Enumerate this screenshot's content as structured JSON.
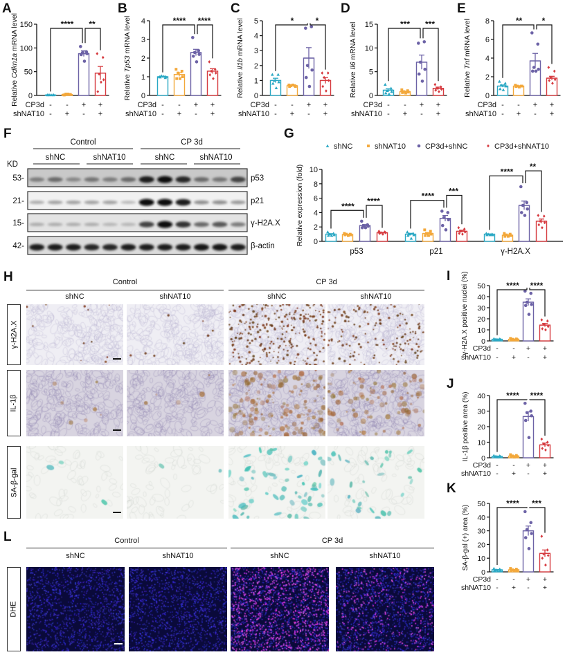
{
  "panels": {
    "A": "A",
    "B": "B",
    "C": "C",
    "D": "D",
    "E": "E",
    "F": "F",
    "G": "G",
    "H": "H",
    "I": "I",
    "J": "J",
    "K": "K",
    "L": "L"
  },
  "colors": {
    "shNC": "#2aa8c4",
    "shNAT10": "#f3a83b",
    "CP3d+shNC": "#6c62a6",
    "CP3d+shNAT10": "#d63a3f"
  },
  "markers": {
    "shNC": "triangle",
    "shNAT10": "square",
    "CP3d+shNC": "circle",
    "CP3d+shNAT10": "diamond"
  },
  "chart_data": [
    {
      "id": "A",
      "type": "bar",
      "ylabel": [
        {
          "t": "Relative "
        },
        {
          "t": "Cdkn1a",
          "i": true
        },
        {
          "t": " mRNA level"
        }
      ],
      "ylim": [
        0,
        150
      ],
      "yticks": [
        0,
        50,
        100,
        150
      ],
      "groups": [
        "shNC",
        "shNAT10",
        "CP3d+shNC",
        "CP3d+shNAT10"
      ],
      "means": [
        1,
        2,
        88,
        47
      ],
      "sem": [
        0.2,
        0.4,
        6,
        14
      ],
      "points": [
        [
          1,
          1,
          1,
          1,
          1,
          1
        ],
        [
          1,
          2,
          3,
          2,
          1,
          3
        ],
        [
          103,
          92,
          90,
          88,
          86,
          72
        ],
        [
          88,
          80,
          45,
          33,
          8,
          28
        ]
      ],
      "sig": [
        {
          "from": 0,
          "to": 2,
          "label": "****"
        },
        {
          "from": 2,
          "to": 3,
          "label": "**"
        }
      ],
      "conditions": [
        {
          "label": "CP3d",
          "values": [
            "-",
            "-",
            "+",
            "+"
          ]
        },
        {
          "label": "shNAT10",
          "values": [
            "-",
            "+",
            "-",
            "+"
          ]
        }
      ]
    },
    {
      "id": "B",
      "type": "bar",
      "ylabel": [
        {
          "t": "Relative "
        },
        {
          "t": "Tp53",
          "i": true
        },
        {
          "t": " mRNA level"
        }
      ],
      "ylim": [
        0,
        4
      ],
      "yticks": [
        0,
        1,
        2,
        3,
        4
      ],
      "groups": [
        "shNC",
        "shNAT10",
        "CP3d+shNC",
        "CP3d+shNAT10"
      ],
      "means": [
        1.0,
        1.12,
        2.3,
        1.3
      ],
      "sem": [
        0.03,
        0.1,
        0.17,
        0.13
      ],
      "points": [
        [
          1.0,
          0.95,
          1.05,
          1.0,
          0.98,
          1.02
        ],
        [
          1.4,
          1.3,
          1.2,
          1.0,
          0.9,
          0.9
        ],
        [
          3.1,
          2.4,
          2.3,
          2.2,
          2.1,
          1.8
        ],
        [
          1.8,
          1.4,
          1.3,
          1.2,
          1.1,
          0.9
        ]
      ],
      "sig": [
        {
          "from": 0,
          "to": 2,
          "label": "****"
        },
        {
          "from": 2,
          "to": 3,
          "label": "****"
        }
      ],
      "conditions": [
        {
          "label": "CP3d",
          "values": [
            "-",
            "-",
            "+",
            "+"
          ]
        },
        {
          "label": "shNAT10",
          "values": [
            "-",
            "+",
            "-",
            "+"
          ]
        }
      ]
    },
    {
      "id": "C",
      "type": "bar",
      "ylabel": [
        {
          "t": "Relative "
        },
        {
          "t": "Il1b",
          "i": true
        },
        {
          "t": " mRNA level"
        }
      ],
      "ylim": [
        0,
        5
      ],
      "yticks": [
        0,
        1,
        2,
        3,
        4,
        5
      ],
      "groups": [
        "shNC",
        "shNAT10",
        "CP3d+shNC",
        "CP3d+shNAT10"
      ],
      "means": [
        1.0,
        0.65,
        2.5,
        1.0
      ],
      "sem": [
        0.15,
        0.03,
        0.7,
        0.2
      ],
      "points": [
        [
          1.4,
          1.4,
          1.0,
          0.9,
          0.8,
          0.5
        ],
        [
          0.7,
          0.65,
          0.65,
          0.6,
          0.6,
          0.7
        ],
        [
          4.5,
          4.6,
          2.0,
          1.7,
          1.2,
          0.6
        ],
        [
          1.5,
          1.5,
          1.2,
          1.0,
          0.6,
          0.3
        ]
      ],
      "sig": [
        {
          "from": 0,
          "to": 2,
          "label": "*"
        },
        {
          "from": 2,
          "to": 3,
          "label": "*"
        }
      ],
      "conditions": [
        {
          "label": "CP3d",
          "values": [
            "-",
            "-",
            "+",
            "+"
          ]
        },
        {
          "label": "shNAT10",
          "values": [
            "-",
            "+",
            "-",
            "+"
          ]
        }
      ]
    },
    {
      "id": "D",
      "type": "bar",
      "ylabel": [
        {
          "t": "Relative "
        },
        {
          "t": "Il6",
          "i": true
        },
        {
          "t": " mRNA level"
        }
      ],
      "ylim": [
        0,
        15
      ],
      "yticks": [
        0,
        5,
        10,
        15
      ],
      "groups": [
        "shNC",
        "shNAT10",
        "CP3d+shNC",
        "CP3d+shNAT10"
      ],
      "means": [
        1.1,
        0.8,
        7.0,
        1.5
      ],
      "sem": [
        0.3,
        0.12,
        1.5,
        0.25
      ],
      "points": [
        [
          2.3,
          1.5,
          1.0,
          0.8,
          0.5,
          0.3
        ],
        [
          1.2,
          1.0,
          0.8,
          0.7,
          0.6,
          0.5
        ],
        [
          11,
          11.3,
          7,
          5.5,
          4.5,
          3
        ],
        [
          2.3,
          1.8,
          1.5,
          1.3,
          1.1,
          0.8
        ]
      ],
      "sig": [
        {
          "from": 0,
          "to": 2,
          "label": "***"
        },
        {
          "from": 2,
          "to": 3,
          "label": "***"
        }
      ],
      "conditions": [
        {
          "label": "CP3d",
          "values": [
            "-",
            "-",
            "+",
            "+"
          ]
        },
        {
          "label": "shNAT10",
          "values": [
            "-",
            "+",
            "-",
            "+"
          ]
        }
      ]
    },
    {
      "id": "E",
      "type": "bar",
      "ylabel": [
        {
          "t": "Relative "
        },
        {
          "t": "Tnf",
          "i": true
        },
        {
          "t": " mRNA level"
        }
      ],
      "ylim": [
        0,
        8
      ],
      "yticks": [
        0,
        2,
        4,
        6,
        8
      ],
      "groups": [
        "shNC",
        "shNAT10",
        "CP3d+shNC",
        "CP3d+shNAT10"
      ],
      "means": [
        1.0,
        1.0,
        3.7,
        1.85
      ],
      "sem": [
        0.12,
        0.04,
        0.8,
        0.2
      ],
      "points": [
        [
          1.5,
          1.3,
          1.1,
          1.0,
          0.7,
          0.6
        ],
        [
          1.1,
          1.0,
          1.0,
          1.0,
          0.95,
          0.9
        ],
        [
          6.7,
          5.5,
          3,
          2.8,
          2.6,
          2.6
        ],
        [
          3.0,
          2.6,
          1.9,
          1.7,
          1.6,
          1.3
        ]
      ],
      "sig": [
        {
          "from": 0,
          "to": 2,
          "label": "**"
        },
        {
          "from": 2,
          "to": 3,
          "label": "*"
        }
      ],
      "conditions": [
        {
          "label": "CP3d",
          "values": [
            "-",
            "-",
            "+",
            "+"
          ]
        },
        {
          "label": "shNAT10",
          "values": [
            "-",
            "+",
            "-",
            "+"
          ]
        }
      ]
    },
    {
      "id": "G",
      "type": "bar",
      "ylabel": [
        {
          "t": "Relative expression (fold)"
        }
      ],
      "ylim": [
        0,
        10
      ],
      "yticks": [
        0,
        2,
        4,
        6,
        8,
        10
      ],
      "legend": {
        "position": "top",
        "entries": [
          "shNC",
          "shNAT10",
          "CP3d+shNC",
          "CP3d+shNAT10"
        ]
      },
      "categories": [
        "p53",
        "p21",
        "γ-H2A.X"
      ],
      "series": [
        {
          "name": "shNC",
          "means": [
            1.0,
            1.0,
            1.0
          ],
          "sem": [
            0.07,
            0.12,
            0.03
          ],
          "points": [
            [
              1.3,
              1.1,
              1.0,
              0.9,
              0.8,
              0.8
            ],
            [
              1.3,
              1.1,
              1.0,
              0.9,
              0.8,
              0.4
            ],
            [
              1.1,
              1.0,
              1.0,
              0.9,
              0.9,
              0.9
            ]
          ]
        },
        {
          "name": "shNAT10",
          "means": [
            0.95,
            1.1,
            0.85
          ],
          "sem": [
            0.05,
            0.12,
            0.07
          ],
          "points": [
            [
              1.1,
              1.0,
              1.0,
              0.9,
              0.9,
              0.8
            ],
            [
              1.6,
              1.4,
              1.1,
              1.0,
              0.8,
              0.8
            ],
            [
              1.1,
              1.0,
              0.9,
              0.8,
              0.7,
              0.7
            ]
          ]
        },
        {
          "name": "CP3d+shNC",
          "means": [
            2.2,
            3.2,
            5.0
          ],
          "sem": [
            0.13,
            0.4,
            0.6
          ],
          "points": [
            [
              2.8,
              2.3,
              2.2,
              2.1,
              1.9,
              1.9
            ],
            [
              4.2,
              4.0,
              3.3,
              3.0,
              2.2,
              1.6
            ],
            [
              7.6,
              5.4,
              5.0,
              4.5,
              4.0,
              3.6
            ]
          ]
        },
        {
          "name": "CP3d+shNAT10",
          "means": [
            1.2,
            1.4,
            2.8
          ],
          "sem": [
            0.05,
            0.15,
            0.3
          ],
          "points": [
            [
              1.4,
              1.3,
              1.2,
              1.2,
              1.1,
              1.0
            ],
            [
              1.9,
              1.7,
              1.4,
              1.3,
              1.1,
              1.0
            ],
            [
              3.6,
              3.5,
              2.8,
              2.6,
              2.3,
              1.9
            ]
          ]
        }
      ],
      "sig": [
        [
          {
            "from": 0,
            "to": 2,
            "label": "****"
          },
          {
            "from": 2,
            "to": 3,
            "label": "****"
          }
        ],
        [
          {
            "from": 0,
            "to": 2,
            "label": "****"
          },
          {
            "from": 2,
            "to": 3,
            "label": "***"
          }
        ],
        [
          {
            "from": 0,
            "to": 2,
            "label": "****"
          },
          {
            "from": 2,
            "to": 3,
            "label": "**"
          }
        ]
      ]
    },
    {
      "id": "I",
      "type": "bar",
      "ylabel": [
        {
          "t": "γ-H2A.X positive nuclei (%)"
        }
      ],
      "ylim": [
        0,
        50
      ],
      "yticks": [
        0,
        10,
        20,
        30,
        40,
        50
      ],
      "groups": [
        "shNC",
        "shNAT10",
        "CP3d+shNC",
        "CP3d+shNAT10"
      ],
      "means": [
        1.5,
        1.5,
        35,
        14.3
      ],
      "sem": [
        0.2,
        0.25,
        3,
        1.5
      ],
      "points": [
        [
          2,
          1.8,
          1.5,
          1.3,
          1.2,
          1.0
        ],
        [
          2.3,
          1.8,
          1.5,
          1.2,
          1.0,
          0.9
        ],
        [
          45,
          43,
          35,
          33,
          32,
          24
        ],
        [
          19,
          18,
          15,
          13,
          11,
          10
        ]
      ],
      "sig": [
        {
          "from": 0,
          "to": 2,
          "label": "****"
        },
        {
          "from": 2,
          "to": 3,
          "label": "****"
        }
      ],
      "conditions": [
        {
          "label": "CP3d",
          "values": [
            "-",
            "-",
            "+",
            "+"
          ]
        },
        {
          "label": "shNAT10",
          "values": [
            "-",
            "+",
            "-",
            "+"
          ]
        }
      ]
    },
    {
      "id": "J",
      "type": "bar",
      "ylabel": [
        {
          "t": "IL-1β positive area (%)"
        }
      ],
      "ylim": [
        0,
        40
      ],
      "yticks": [
        0,
        10,
        20,
        30,
        40
      ],
      "groups": [
        "shNC",
        "shNAT10",
        "CP3d+shNC",
        "CP3d+shNAT10"
      ],
      "means": [
        0.9,
        1.1,
        26.5,
        8.3
      ],
      "sem": [
        0.2,
        0.25,
        3,
        1.2
      ],
      "points": [
        [
          1.5,
          1.2,
          1,
          0.8,
          0.6,
          0.5
        ],
        [
          2,
          1.5,
          1.2,
          0.8,
          0.6,
          0.4
        ],
        [
          35,
          30,
          29,
          27,
          24,
          13
        ],
        [
          12,
          10,
          9,
          8,
          6,
          5
        ]
      ],
      "sig": [
        {
          "from": 0,
          "to": 2,
          "label": "****"
        },
        {
          "from": 2,
          "to": 3,
          "label": "****"
        }
      ],
      "conditions": [
        {
          "label": "CP3d",
          "values": [
            "-",
            "-",
            "+",
            "+"
          ]
        },
        {
          "label": "shNAT10",
          "values": [
            "-",
            "+",
            "-",
            "+"
          ]
        }
      ]
    },
    {
      "id": "K",
      "type": "bar",
      "ylabel": [
        {
          "t": "SA-β-gal (+) area (%)"
        }
      ],
      "ylim": [
        0,
        50
      ],
      "yticks": [
        0,
        10,
        20,
        30,
        40,
        50
      ],
      "groups": [
        "shNC",
        "shNAT10",
        "CP3d+shNC",
        "CP3d+shNAT10"
      ],
      "means": [
        1.5,
        1.5,
        30,
        13.5
      ],
      "sem": [
        0.25,
        0.25,
        3.5,
        2.5
      ],
      "points": [
        [
          2.5,
          2,
          1.5,
          1.2,
          1,
          0.8
        ],
        [
          2.5,
          2,
          1.5,
          1.2,
          1,
          0.8
        ],
        [
          44,
          36,
          31,
          28,
          25,
          17
        ],
        [
          26,
          16,
          13,
          12,
          10,
          5
        ]
      ],
      "sig": [
        {
          "from": 0,
          "to": 2,
          "label": "****"
        },
        {
          "from": 2,
          "to": 3,
          "label": "***"
        }
      ],
      "conditions": [
        {
          "label": "CP3d",
          "values": [
            "-",
            "-",
            "+",
            "+"
          ]
        },
        {
          "label": "shNAT10",
          "values": [
            "-",
            "+",
            "-",
            "+"
          ]
        }
      ]
    }
  ],
  "blot": {
    "kd_label": "KD",
    "groups": [
      {
        "label": "Control",
        "sub": [
          "shNC",
          "shNAT10"
        ]
      },
      {
        "label": "CP 3d",
        "sub": [
          "shNC",
          "shNAT10"
        ]
      }
    ],
    "rows": [
      {
        "kd": "53-",
        "label": "p53",
        "intensity": [
          0.4,
          0.5,
          0.35,
          0.45,
          0.4,
          0.5,
          0.9,
          1.0,
          0.85,
          0.5,
          0.45,
          0.7
        ]
      },
      {
        "kd": "21-",
        "label": "p21",
        "intensity": [
          0.15,
          0.2,
          0.2,
          0.2,
          0.2,
          0.08,
          1.0,
          1.0,
          0.9,
          0.3,
          0.3,
          0.25
        ]
      },
      {
        "kd": "15-",
        "label": "γ-H2A.X",
        "intensity": [
          0.15,
          0.15,
          0.15,
          0.15,
          0.1,
          0.1,
          0.7,
          1.0,
          0.8,
          0.5,
          0.6,
          0.4
        ]
      },
      {
        "kd": "42-",
        "label": "β-actin",
        "intensity": [
          0.9,
          0.9,
          0.9,
          0.85,
          0.85,
          0.9,
          0.9,
          0.9,
          0.9,
          0.95,
          0.95,
          0.9
        ]
      }
    ]
  },
  "histology": {
    "groups": [
      {
        "label": "Control",
        "sub": [
          "shNC",
          "shNAT10"
        ]
      },
      {
        "label": "CP 3d",
        "sub": [
          "shNC",
          "shNAT10"
        ]
      }
    ],
    "rows": [
      {
        "label": "γ-H2A.X"
      },
      {
        "label": "IL-1β"
      },
      {
        "label": "SA-β-gal"
      }
    ]
  },
  "dhe": {
    "groups": [
      {
        "label": "Control",
        "sub": [
          "shNC",
          "shNAT10"
        ]
      },
      {
        "label": "CP 3d",
        "sub": [
          "shNC",
          "shNAT10"
        ]
      }
    ],
    "rows": [
      {
        "label": "DHE"
      }
    ]
  }
}
